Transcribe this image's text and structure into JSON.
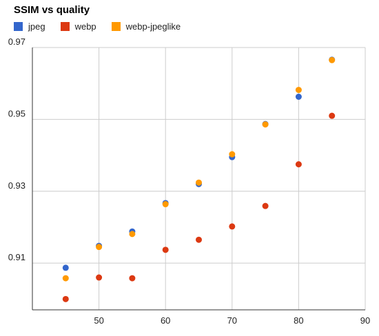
{
  "chart_data": {
    "type": "scatter",
    "title": "SSIM vs quality",
    "xlabel": "",
    "ylabel": "",
    "xlim": [
      40,
      90
    ],
    "ylim": [
      0.897,
      0.97
    ],
    "xticks": [
      50,
      60,
      70,
      80,
      90
    ],
    "yticks": [
      0.91,
      0.93,
      0.95,
      0.97
    ],
    "ytick_labels": [
      "0.91",
      "0.93",
      "0.95",
      "0.97"
    ],
    "xtick_labels": [
      "50",
      "60",
      "70",
      "80",
      "90"
    ],
    "grid": true,
    "legend": "top-left",
    "series": [
      {
        "name": "jpeg",
        "color": "#3366cc",
        "x": [
          45,
          50,
          55,
          60,
          65,
          70,
          75,
          80,
          85
        ],
        "y": [
          0.9087,
          0.9148,
          0.9188,
          0.9267,
          0.932,
          0.9395,
          0.9487,
          0.9563,
          0.9666
        ]
      },
      {
        "name": "webp",
        "color": "#dc3912",
        "x": [
          45,
          50,
          55,
          60,
          65,
          70,
          75,
          80,
          85
        ],
        "y": [
          0.9,
          0.906,
          0.9058,
          0.9137,
          0.9165,
          0.9202,
          0.9259,
          0.9375,
          0.951
        ]
      },
      {
        "name": "webp-jpeglike",
        "color": "#ff9900",
        "x": [
          45,
          50,
          55,
          60,
          65,
          70,
          75,
          80,
          85
        ],
        "y": [
          0.9058,
          0.9145,
          0.9181,
          0.9264,
          0.9324,
          0.9403,
          0.9486,
          0.9582,
          0.9665
        ]
      }
    ]
  }
}
